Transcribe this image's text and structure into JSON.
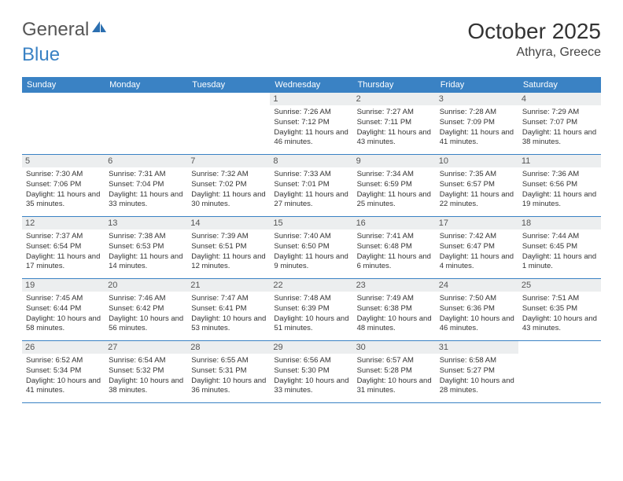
{
  "logo": {
    "part1": "General",
    "part2": "Blue"
  },
  "title": "October 2025",
  "location": "Athyra, Greece",
  "colors": {
    "header_bg": "#3a82c4",
    "daynum_bg": "#eceeef",
    "week_border": "#3a82c4",
    "page_bg": "#ffffff"
  },
  "weekdays": [
    "Sunday",
    "Monday",
    "Tuesday",
    "Wednesday",
    "Thursday",
    "Friday",
    "Saturday"
  ],
  "weeks": [
    [
      {
        "num": "",
        "lines": []
      },
      {
        "num": "",
        "lines": []
      },
      {
        "num": "",
        "lines": []
      },
      {
        "num": "1",
        "lines": [
          "Sunrise: 7:26 AM",
          "Sunset: 7:12 PM",
          "Daylight: 11 hours and 46 minutes."
        ]
      },
      {
        "num": "2",
        "lines": [
          "Sunrise: 7:27 AM",
          "Sunset: 7:11 PM",
          "Daylight: 11 hours and 43 minutes."
        ]
      },
      {
        "num": "3",
        "lines": [
          "Sunrise: 7:28 AM",
          "Sunset: 7:09 PM",
          "Daylight: 11 hours and 41 minutes."
        ]
      },
      {
        "num": "4",
        "lines": [
          "Sunrise: 7:29 AM",
          "Sunset: 7:07 PM",
          "Daylight: 11 hours and 38 minutes."
        ]
      }
    ],
    [
      {
        "num": "5",
        "lines": [
          "Sunrise: 7:30 AM",
          "Sunset: 7:06 PM",
          "Daylight: 11 hours and 35 minutes."
        ]
      },
      {
        "num": "6",
        "lines": [
          "Sunrise: 7:31 AM",
          "Sunset: 7:04 PM",
          "Daylight: 11 hours and 33 minutes."
        ]
      },
      {
        "num": "7",
        "lines": [
          "Sunrise: 7:32 AM",
          "Sunset: 7:02 PM",
          "Daylight: 11 hours and 30 minutes."
        ]
      },
      {
        "num": "8",
        "lines": [
          "Sunrise: 7:33 AM",
          "Sunset: 7:01 PM",
          "Daylight: 11 hours and 27 minutes."
        ]
      },
      {
        "num": "9",
        "lines": [
          "Sunrise: 7:34 AM",
          "Sunset: 6:59 PM",
          "Daylight: 11 hours and 25 minutes."
        ]
      },
      {
        "num": "10",
        "lines": [
          "Sunrise: 7:35 AM",
          "Sunset: 6:57 PM",
          "Daylight: 11 hours and 22 minutes."
        ]
      },
      {
        "num": "11",
        "lines": [
          "Sunrise: 7:36 AM",
          "Sunset: 6:56 PM",
          "Daylight: 11 hours and 19 minutes."
        ]
      }
    ],
    [
      {
        "num": "12",
        "lines": [
          "Sunrise: 7:37 AM",
          "Sunset: 6:54 PM",
          "Daylight: 11 hours and 17 minutes."
        ]
      },
      {
        "num": "13",
        "lines": [
          "Sunrise: 7:38 AM",
          "Sunset: 6:53 PM",
          "Daylight: 11 hours and 14 minutes."
        ]
      },
      {
        "num": "14",
        "lines": [
          "Sunrise: 7:39 AM",
          "Sunset: 6:51 PM",
          "Daylight: 11 hours and 12 minutes."
        ]
      },
      {
        "num": "15",
        "lines": [
          "Sunrise: 7:40 AM",
          "Sunset: 6:50 PM",
          "Daylight: 11 hours and 9 minutes."
        ]
      },
      {
        "num": "16",
        "lines": [
          "Sunrise: 7:41 AM",
          "Sunset: 6:48 PM",
          "Daylight: 11 hours and 6 minutes."
        ]
      },
      {
        "num": "17",
        "lines": [
          "Sunrise: 7:42 AM",
          "Sunset: 6:47 PM",
          "Daylight: 11 hours and 4 minutes."
        ]
      },
      {
        "num": "18",
        "lines": [
          "Sunrise: 7:44 AM",
          "Sunset: 6:45 PM",
          "Daylight: 11 hours and 1 minute."
        ]
      }
    ],
    [
      {
        "num": "19",
        "lines": [
          "Sunrise: 7:45 AM",
          "Sunset: 6:44 PM",
          "Daylight: 10 hours and 58 minutes."
        ]
      },
      {
        "num": "20",
        "lines": [
          "Sunrise: 7:46 AM",
          "Sunset: 6:42 PM",
          "Daylight: 10 hours and 56 minutes."
        ]
      },
      {
        "num": "21",
        "lines": [
          "Sunrise: 7:47 AM",
          "Sunset: 6:41 PM",
          "Daylight: 10 hours and 53 minutes."
        ]
      },
      {
        "num": "22",
        "lines": [
          "Sunrise: 7:48 AM",
          "Sunset: 6:39 PM",
          "Daylight: 10 hours and 51 minutes."
        ]
      },
      {
        "num": "23",
        "lines": [
          "Sunrise: 7:49 AM",
          "Sunset: 6:38 PM",
          "Daylight: 10 hours and 48 minutes."
        ]
      },
      {
        "num": "24",
        "lines": [
          "Sunrise: 7:50 AM",
          "Sunset: 6:36 PM",
          "Daylight: 10 hours and 46 minutes."
        ]
      },
      {
        "num": "25",
        "lines": [
          "Sunrise: 7:51 AM",
          "Sunset: 6:35 PM",
          "Daylight: 10 hours and 43 minutes."
        ]
      }
    ],
    [
      {
        "num": "26",
        "lines": [
          "Sunrise: 6:52 AM",
          "Sunset: 5:34 PM",
          "Daylight: 10 hours and 41 minutes."
        ]
      },
      {
        "num": "27",
        "lines": [
          "Sunrise: 6:54 AM",
          "Sunset: 5:32 PM",
          "Daylight: 10 hours and 38 minutes."
        ]
      },
      {
        "num": "28",
        "lines": [
          "Sunrise: 6:55 AM",
          "Sunset: 5:31 PM",
          "Daylight: 10 hours and 36 minutes."
        ]
      },
      {
        "num": "29",
        "lines": [
          "Sunrise: 6:56 AM",
          "Sunset: 5:30 PM",
          "Daylight: 10 hours and 33 minutes."
        ]
      },
      {
        "num": "30",
        "lines": [
          "Sunrise: 6:57 AM",
          "Sunset: 5:28 PM",
          "Daylight: 10 hours and 31 minutes."
        ]
      },
      {
        "num": "31",
        "lines": [
          "Sunrise: 6:58 AM",
          "Sunset: 5:27 PM",
          "Daylight: 10 hours and 28 minutes."
        ]
      },
      {
        "num": "",
        "lines": []
      }
    ]
  ]
}
